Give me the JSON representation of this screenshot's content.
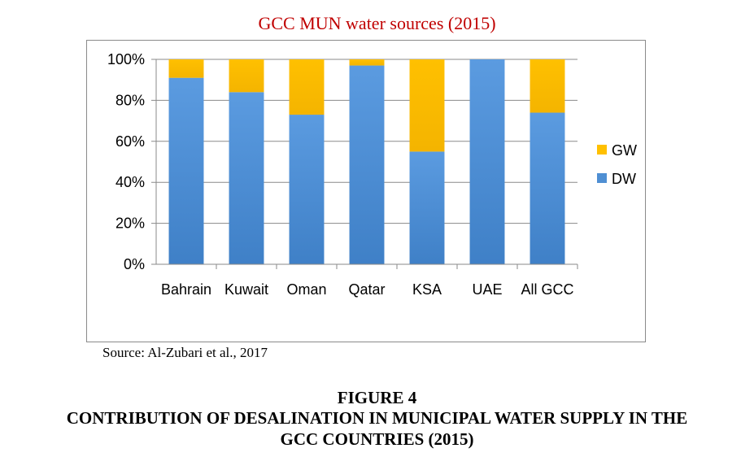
{
  "title": "GCC MUN water sources (2015)",
  "source": "Source: Al-Zubari et al., 2017",
  "figure": {
    "number": "FIGURE 4",
    "caption_line_1": "CONTRIBUTION OF DESALINATION IN MUNICIPAL WATER SUPPLY IN THE",
    "caption_line_2": "GCC COUNTRIES (2015)"
  },
  "colors": {
    "title": "#c00000",
    "DW": "#4f8fd3",
    "GW": "#ffc000",
    "axis": "#8a8a8a"
  },
  "chart_data": {
    "type": "bar",
    "stacked": true,
    "title": "GCC MUN water sources (2015)",
    "xlabel": "",
    "ylabel": "",
    "categories": [
      "Bahrain",
      "Kuwait",
      "Oman",
      "Qatar",
      "KSA",
      "UAE",
      "All GCC"
    ],
    "yticks": [
      "0%",
      "20%",
      "40%",
      "60%",
      "80%",
      "100%"
    ],
    "ylim": [
      0,
      100
    ],
    "grid": true,
    "legend_position": "right",
    "series": [
      {
        "name": "DW",
        "values": [
          91,
          84,
          73,
          97,
          55,
          100,
          74
        ]
      },
      {
        "name": "GW",
        "values": [
          9,
          16,
          27,
          3,
          45,
          0,
          26
        ]
      }
    ],
    "legend": [
      "GW",
      "DW"
    ]
  }
}
